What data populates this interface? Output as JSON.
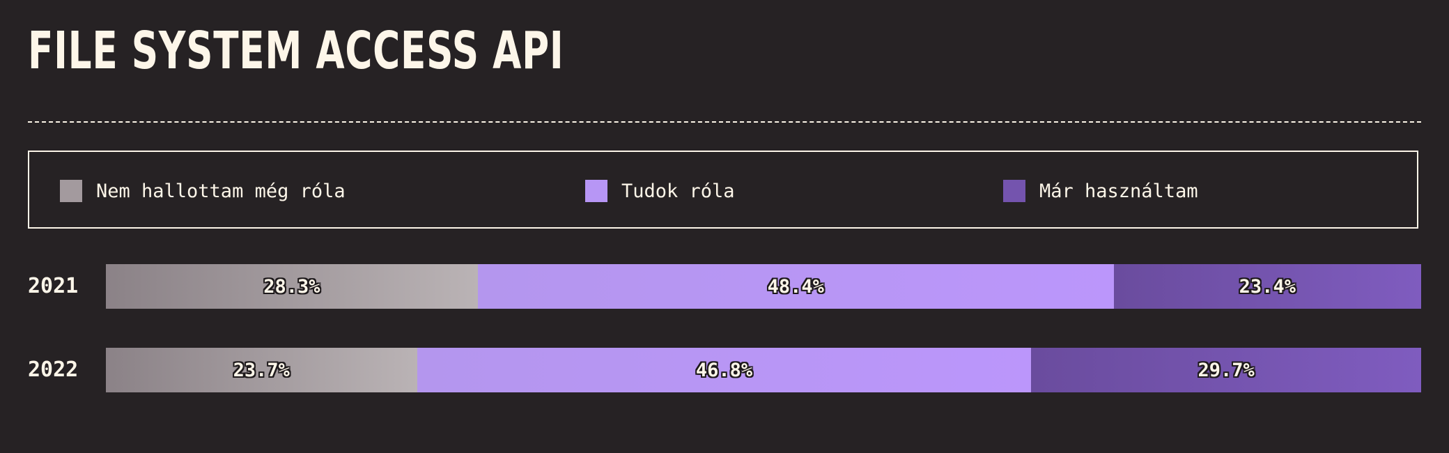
{
  "chart_data": {
    "type": "bar",
    "orientation": "horizontal",
    "stacked": true,
    "title": "FILE SYSTEM ACCESS API",
    "categories": [
      "2021",
      "2022"
    ],
    "series": [
      {
        "name": "Nem hallottam még róla",
        "color": "#a39a9e",
        "values": [
          28.3,
          23.7
        ],
        "labels": [
          "28.3%",
          "23.7%"
        ]
      },
      {
        "name": "Tudok róla",
        "color": "#b796f5",
        "values": [
          48.4,
          46.8
        ],
        "labels": [
          "48.4%",
          "46.8%"
        ]
      },
      {
        "name": "Már használtam",
        "color": "#7454ae",
        "values": [
          23.4,
          29.7
        ],
        "labels": [
          "23.4%",
          "29.7%"
        ]
      }
    ],
    "unit": "%",
    "legend_position": "top"
  }
}
